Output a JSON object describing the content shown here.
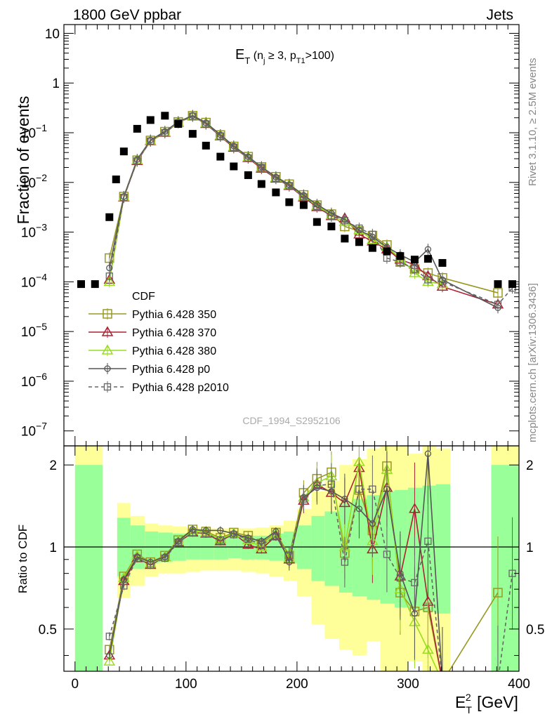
{
  "header": {
    "left": "1800 GeV ppbar",
    "right": "Jets"
  },
  "side_labels": {
    "rivet": "Rivet 3.1.10, ≥ 2.5M events",
    "mcplots": "mcplots.cern.ch [arXiv:1306.3436]"
  },
  "analysis_id": "CDF_1994_S2952106",
  "chart_data": {
    "type": "line",
    "title": "E_T (n_j ≥ 3, p_T1 >100)",
    "xlabel": "E_T^2 [GeV]",
    "ylabel_main": "Fraction of events",
    "ylabel_ratio": "Ratio to CDF",
    "xlim": [
      -10,
      400
    ],
    "ylim_main": [
      5e-08,
      15
    ],
    "ylim_ratio": [
      0.35,
      2.35
    ],
    "y_scale_main": "log",
    "y_scale_ratio": "log",
    "x_ticks": [
      0,
      100,
      200,
      300,
      400
    ],
    "y_ticks_main": [
      "10^-7",
      "10^-6",
      "10^-5",
      "10^-4",
      "10^-3",
      "10^-2",
      "10^-1",
      "1",
      "10"
    ],
    "y_ticks_ratio": [
      "0.5",
      "1",
      "2"
    ],
    "legend": [
      "CDF",
      "Pythia 6.428 350",
      "Pythia 6.428 370",
      "Pythia 6.428 380",
      "Pythia 6.428 p0",
      "Pythia 6.428 p2010"
    ],
    "legend_position": "center-left",
    "colors": {
      "cdf": "#000000",
      "s350": "#999922",
      "s370": "#aa2233",
      "s380": "#99dd22",
      "p0": "#555555",
      "p2010": "#666666",
      "band_inner": "#99ff99",
      "band_outer": "#ffff99"
    },
    "x": [
      5.5,
      18,
      31,
      37,
      44,
      56,
      68,
      81,
      93,
      106,
      118,
      131,
      143,
      156,
      168,
      181,
      193,
      206,
      218,
      231,
      243,
      256,
      268,
      281,
      293,
      306,
      318,
      331,
      381,
      394
    ],
    "cdf": [
      9e-05,
      9e-05,
      0.002,
      0.0115,
      0.042,
      0.12,
      0.18,
      0.22,
      0.15,
      0.095,
      0.055,
      0.033,
      0.021,
      0.014,
      0.0093,
      0.0063,
      0.004,
      0.0035,
      0.0016,
      0.0013,
      0.00074,
      0.00063,
      0.00048,
      0.00041,
      0.00033,
      0.00028,
      0.00029,
      0.00024,
      9e-05,
      9e-05
    ],
    "series": [
      {
        "name": "Pythia 6.428 350",
        "x": [
          31,
          44,
          56,
          68,
          81,
          93,
          106,
          118,
          131,
          143,
          156,
          168,
          181,
          193,
          206,
          218,
          231,
          243,
          256,
          268,
          281,
          293,
          306,
          318,
          331,
          381
        ],
        "values": [
          0.0003,
          0.0052,
          0.028,
          0.07,
          0.105,
          0.165,
          0.22,
          0.16,
          0.09,
          0.053,
          0.033,
          0.0205,
          0.013,
          0.0092,
          0.0056,
          0.0035,
          0.0023,
          0.0013,
          0.00105,
          0.00085,
          0.00055,
          0.00025,
          0.00018,
          0.00015,
          0.00012,
          6e-05
        ],
        "ratio": [
          0.42,
          0.78,
          0.94,
          0.88,
          0.93,
          1.06,
          1.16,
          1.14,
          1.08,
          1.13,
          1.1,
          1.03,
          1.13,
          0.93,
          1.58,
          1.78,
          1.88,
          0.95,
          1.62,
          1.15,
          1.98,
          0.68,
          0.58,
          0.6,
          0.32,
          0.68
        ]
      },
      {
        "name": "Pythia 6.428 370",
        "x": [
          31,
          44,
          56,
          68,
          81,
          93,
          106,
          118,
          131,
          143,
          156,
          168,
          181,
          193,
          206,
          218,
          231,
          243,
          256,
          268,
          281,
          293,
          306,
          318,
          331,
          381
        ],
        "values": [
          0.00011,
          0.005,
          0.027,
          0.068,
          0.1,
          0.16,
          0.215,
          0.15,
          0.085,
          0.05,
          0.031,
          0.019,
          0.012,
          0.0085,
          0.005,
          0.0032,
          0.0021,
          0.0019,
          0.0009,
          0.00065,
          0.00045,
          0.00028,
          0.00022,
          0.00013,
          8e-05,
          3.5e-05
        ],
        "ratio": [
          0.4,
          0.75,
          0.91,
          0.86,
          0.92,
          1.04,
          1.13,
          1.12,
          1.05,
          1.12,
          1.02,
          0.98,
          1.1,
          0.9,
          1.48,
          1.7,
          1.58,
          1.45,
          1.95,
          0.98,
          1.65,
          0.78,
          1.38,
          0.63,
          0.32,
          0.32
        ]
      },
      {
        "name": "Pythia 6.428 380",
        "x": [
          31,
          44,
          56,
          68,
          81,
          93,
          106,
          118,
          131,
          143,
          156,
          168,
          181,
          193,
          206,
          218,
          231,
          243,
          256,
          268,
          281,
          293,
          306,
          318,
          331
        ],
        "values": [
          0.0001,
          0.0051,
          0.028,
          0.069,
          0.102,
          0.162,
          0.218,
          0.155,
          0.088,
          0.052,
          0.032,
          0.02,
          0.0125,
          0.0088,
          0.0052,
          0.0034,
          0.0022,
          0.0016,
          0.0011,
          0.0007,
          0.0005,
          0.0003,
          0.00015,
          0.0001,
          9e-05
        ],
        "ratio": [
          0.38,
          0.77,
          0.93,
          0.87,
          0.92,
          1.05,
          1.15,
          1.13,
          1.07,
          1.12,
          1.06,
          1.0,
          1.12,
          0.91,
          1.52,
          1.72,
          1.82,
          1.0,
          2.05,
          1.05,
          1.92,
          0.7,
          0.53,
          0.42,
          0.32
        ]
      },
      {
        "name": "Pythia 6.428 p0",
        "x": [
          31,
          44,
          56,
          68,
          81,
          93,
          106,
          118,
          131,
          143,
          156,
          168,
          181,
          193,
          206,
          218,
          231,
          243,
          256,
          268,
          281,
          293,
          306,
          318,
          331,
          381
        ],
        "values": [
          0.00019,
          0.0052,
          0.029,
          0.071,
          0.106,
          0.166,
          0.222,
          0.158,
          0.091,
          0.054,
          0.033,
          0.0205,
          0.0128,
          0.009,
          0.0055,
          0.0036,
          0.0024,
          0.0018,
          0.0011,
          0.0008,
          0.0005,
          0.00035,
          0.00025,
          0.00045,
          0.00011,
          3e-05
        ],
        "ratio": [
          0.4,
          0.76,
          0.92,
          0.88,
          0.92,
          1.05,
          1.16,
          1.15,
          1.15,
          1.12,
          1.08,
          1.05,
          1.14,
          0.88,
          1.52,
          1.65,
          1.6,
          1.5,
          1.38,
          1.22,
          1.63,
          0.8,
          0.57,
          2.2,
          0.32,
          0.32
        ]
      },
      {
        "name": "Pythia 6.428 p2010",
        "x": [
          31,
          44,
          56,
          68,
          81,
          93,
          106,
          118,
          131,
          143,
          156,
          168,
          181,
          193,
          206,
          218,
          231,
          243,
          256,
          268,
          281,
          293,
          306,
          318,
          331,
          381,
          394
        ],
        "values": [
          0.00013,
          0.005,
          0.027,
          0.068,
          0.1,
          0.16,
          0.215,
          0.15,
          0.086,
          0.051,
          0.031,
          0.02,
          0.012,
          0.0086,
          0.0051,
          0.0033,
          0.0021,
          0.0017,
          0.0012,
          0.0009,
          0.0003,
          0.00025,
          0.00018,
          0.00011,
          0.0001,
          3.5e-05,
          7.5e-05
        ],
        "ratio": [
          0.47,
          0.72,
          0.91,
          0.86,
          0.91,
          1.04,
          1.13,
          1.12,
          1.06,
          1.11,
          1.07,
          1.02,
          1.09,
          0.93,
          1.5,
          1.68,
          1.7,
          0.88,
          1.63,
          1.63,
          0.94,
          0.77,
          0.74,
          1.05,
          0.32,
          0.32,
          0.8
        ]
      }
    ],
    "band": {
      "edges": [
        0,
        25,
        38,
        50,
        63,
        75,
        88,
        100,
        113,
        125,
        138,
        150,
        163,
        175,
        188,
        200,
        213,
        225,
        238,
        250,
        263,
        275,
        288,
        300,
        313,
        325,
        338,
        375,
        400
      ],
      "inner_hi": [
        2.0,
        null,
        1.28,
        1.2,
        1.14,
        1.13,
        1.12,
        1.11,
        1.1,
        1.1,
        1.1,
        1.1,
        1.1,
        1.12,
        1.14,
        1.2,
        1.3,
        1.35,
        1.45,
        1.5,
        1.55,
        1.6,
        1.62,
        1.65,
        1.68,
        1.7,
        null,
        2.0
      ],
      "inner_lo": [
        0.35,
        null,
        0.78,
        0.83,
        0.87,
        0.88,
        0.89,
        0.9,
        0.9,
        0.9,
        0.91,
        0.9,
        0.9,
        0.89,
        0.87,
        0.83,
        0.75,
        0.72,
        0.68,
        0.66,
        0.64,
        0.62,
        0.6,
        0.59,
        0.58,
        0.57,
        null,
        0.35
      ],
      "outer_hi": [
        2.35,
        null,
        1.45,
        1.3,
        1.22,
        1.2,
        1.19,
        1.18,
        1.17,
        1.17,
        1.17,
        1.17,
        1.18,
        1.2,
        1.25,
        1.38,
        1.6,
        1.75,
        2.0,
        2.1,
        2.3,
        2.35,
        2.35,
        2.2,
        2.35,
        2.3,
        null,
        2.35
      ],
      "outer_lo": [
        0.35,
        null,
        0.65,
        0.72,
        0.78,
        0.8,
        0.8,
        0.81,
        0.82,
        0.82,
        0.82,
        0.81,
        0.8,
        0.78,
        0.75,
        0.66,
        0.52,
        0.46,
        0.42,
        0.4,
        0.45,
        0.35,
        0.35,
        0.38,
        0.35,
        0.35,
        null,
        0.35
      ]
    }
  }
}
